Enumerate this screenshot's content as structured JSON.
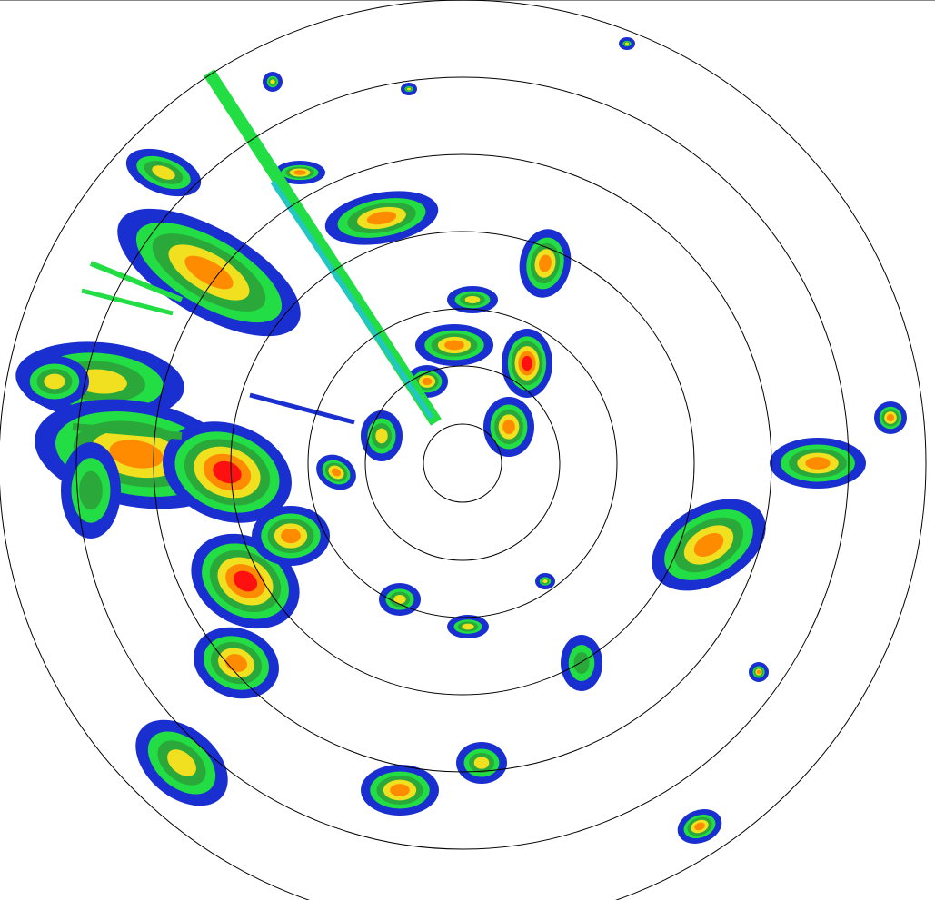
{
  "display": "radar-ppi",
  "range_rings_count": 7,
  "colors": {
    "background": "#ffffff",
    "ring": "#000000",
    "weak": "#1a2fd0",
    "light": "#22c8c0",
    "moderate": "#22dd44",
    "medium": "#2aa83a",
    "heavy": "#f0e020",
    "intense": "#ff8c00",
    "extreme": "#ff1010"
  }
}
